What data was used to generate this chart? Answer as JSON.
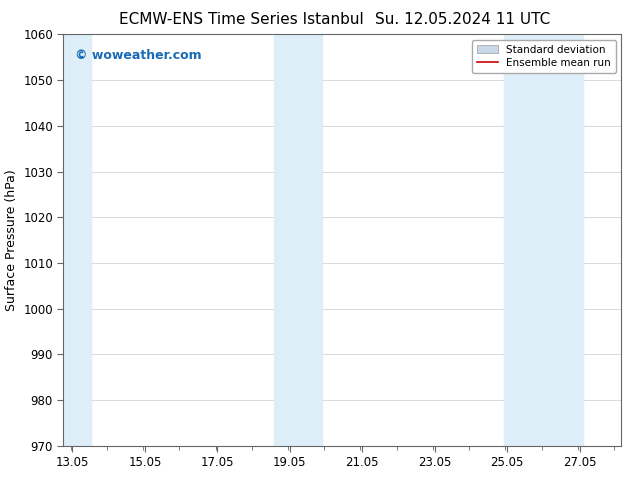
{
  "title_left": "ECMW-ENS Time Series Istanbul",
  "title_right": "Su. 12.05.2024 11 UTC",
  "ylabel": "Surface Pressure (hPa)",
  "ylim": [
    970,
    1060
  ],
  "yticks": [
    970,
    980,
    990,
    1000,
    1010,
    1020,
    1030,
    1040,
    1050,
    1060
  ],
  "xtick_values": [
    13.05,
    15.05,
    17.05,
    19.05,
    21.05,
    23.05,
    25.05,
    27.05
  ],
  "xtick_labels": [
    "13.05",
    "15.05",
    "17.05",
    "19.05",
    "21.05",
    "23.05",
    "25.05",
    "27.05"
  ],
  "xlim": [
    12.8,
    28.2
  ],
  "background_color": "#ffffff",
  "plot_bg_color": "#ffffff",
  "shaded_regions": [
    {
      "x_start": 12.8,
      "x_end": 13.55
    },
    {
      "x_start": 18.6,
      "x_end": 19.95
    },
    {
      "x_start": 24.95,
      "x_end": 27.15
    }
  ],
  "shade_color": "#ddeef8",
  "watermark_text": "© woweather.com",
  "watermark_color": "#1a6bb5",
  "legend_std_dev_color": "#c8d8e8",
  "legend_mean_color": "#cc0000",
  "title_fontsize": 11,
  "tick_fontsize": 8.5,
  "ylabel_fontsize": 9,
  "watermark_fontsize": 9
}
